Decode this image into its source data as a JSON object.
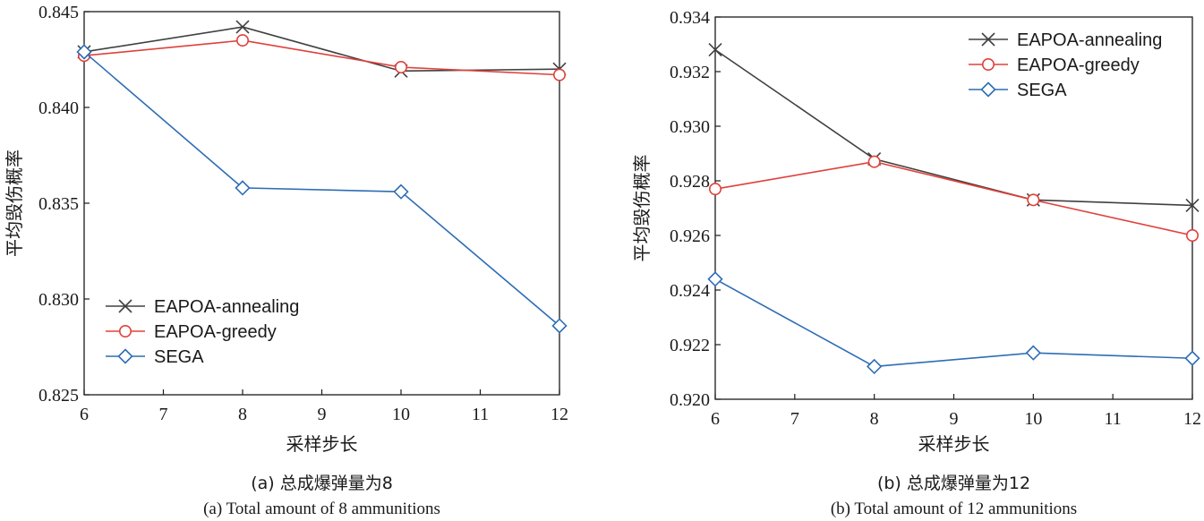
{
  "chart_data": [
    {
      "type": "line",
      "caption_cn": "(a) 总成爆弹量为8",
      "caption_en": "(a) Total amount of 8 ammunitions",
      "xlabel": "采样步长",
      "ylabel": "平均毁伤概率",
      "x": [
        6,
        8,
        10,
        12
      ],
      "xlim": [
        6,
        12
      ],
      "ylim": [
        0.825,
        0.845
      ],
      "xticks": [
        "6",
        "7",
        "8",
        "9",
        "10",
        "11",
        "12"
      ],
      "yticks": [
        "0.825",
        "0.830",
        "0.835",
        "0.840",
        "0.845"
      ],
      "legend_position": "lower-left",
      "grid": false,
      "series": [
        {
          "name": "EAPOA-annealing",
          "values": [
            0.8429,
            0.8442,
            0.8419,
            0.842
          ],
          "color": "#404040",
          "marker": "x"
        },
        {
          "name": "EAPOA-greedy",
          "values": [
            0.8427,
            0.8435,
            0.8421,
            0.8417
          ],
          "color": "#e0403a",
          "marker": "circle"
        },
        {
          "name": "SEGA",
          "values": [
            0.8429,
            0.8358,
            0.8356,
            0.8286
          ],
          "color": "#2e6db4",
          "marker": "diamond"
        }
      ]
    },
    {
      "type": "line",
      "caption_cn": "(b) 总成爆弹量为12",
      "caption_en": "(b) Total amount of 12 ammunitions",
      "xlabel": "采样步长",
      "ylabel": "平均毁伤概率",
      "x": [
        6,
        8,
        10,
        12
      ],
      "xlim": [
        6,
        12
      ],
      "ylim": [
        0.92,
        0.934
      ],
      "xticks": [
        "6",
        "7",
        "8",
        "9",
        "10",
        "11",
        "12"
      ],
      "yticks": [
        "0.920",
        "0.922",
        "0.924",
        "0.926",
        "0.928",
        "0.930",
        "0.932",
        "0.934"
      ],
      "legend_position": "top-right",
      "grid": false,
      "series": [
        {
          "name": "EAPOA-annealing",
          "values": [
            0.9328,
            0.9288,
            0.9273,
            0.9271
          ],
          "color": "#404040",
          "marker": "x"
        },
        {
          "name": "EAPOA-greedy",
          "values": [
            0.9277,
            0.9287,
            0.9273,
            0.926
          ],
          "color": "#e0403a",
          "marker": "circle"
        },
        {
          "name": "SEGA",
          "values": [
            0.9244,
            0.9212,
            0.9217,
            0.9215
          ],
          "color": "#2e6db4",
          "marker": "diamond"
        }
      ]
    }
  ]
}
